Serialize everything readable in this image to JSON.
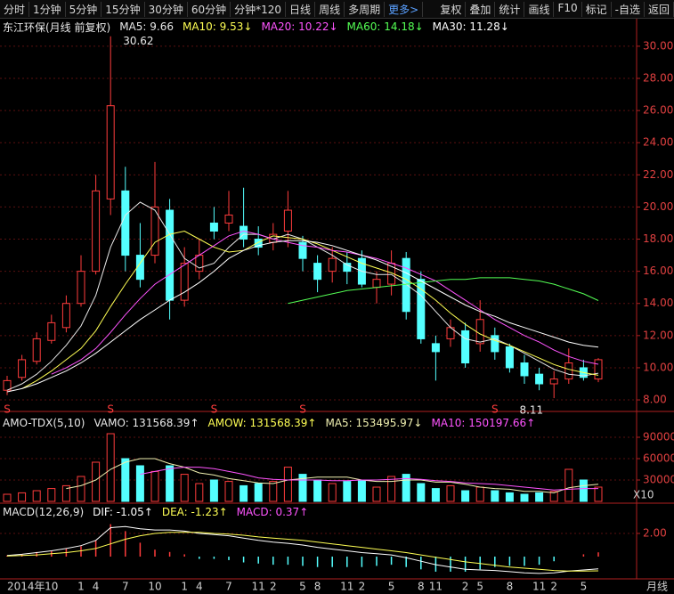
{
  "toolbar": {
    "left": [
      "分时",
      "1分钟",
      "5分钟",
      "15分钟",
      "30分钟",
      "60分钟",
      "分钟*120",
      "日线",
      "周线",
      "多周期",
      "更多>"
    ],
    "right": [
      "复权",
      "叠加",
      "统计",
      "画线",
      "F10",
      "标记",
      "-自选",
      "返回"
    ]
  },
  "period_label": "月线",
  "chart_data": [
    {
      "type": "candlestick",
      "title": "东江环保(月线 前复权)",
      "categories": [
        "2014年",
        null,
        null,
        "10",
        null,
        "1",
        "4",
        null,
        "7",
        null,
        "10",
        null,
        "1",
        "4",
        null,
        "7",
        null,
        "11",
        "2",
        null,
        "5",
        "8",
        null,
        "11",
        "2",
        null,
        "5",
        null,
        "8",
        "11",
        null,
        "2",
        "5",
        null,
        "8",
        null,
        "11",
        "2",
        null,
        "5",
        null
      ],
      "open": [
        8.6,
        9.4,
        10.4,
        11.7,
        12.5,
        14.0,
        16.0,
        20.5,
        21.0,
        17.0,
        17.0,
        19.8,
        14.2,
        16.0,
        19.0,
        19.0,
        18.8,
        18.0,
        17.8,
        18.5,
        17.8,
        16.5,
        16.0,
        16.5,
        16.8,
        15.0,
        15.2,
        16.8,
        15.5,
        11.5,
        11.8,
        12.3,
        11.5,
        12.0,
        11.3,
        10.3,
        9.6,
        9.0,
        9.3,
        10.0,
        9.3
      ],
      "high": [
        9.5,
        10.8,
        12.2,
        13.3,
        14.5,
        17.0,
        22.0,
        30.62,
        22.5,
        19.0,
        22.8,
        20.5,
        17.5,
        18.0,
        20.0,
        21.0,
        21.2,
        18.8,
        19.0,
        21.0,
        18.2,
        17.0,
        17.5,
        17.2,
        17.3,
        16.0,
        17.3,
        17.2,
        16.0,
        12.0,
        13.0,
        12.8,
        14.2,
        12.5,
        11.5,
        10.8,
        10.0,
        9.8,
        11.2,
        10.5,
        10.6
      ],
      "low": [
        8.3,
        9.2,
        10.2,
        11.5,
        12.2,
        13.8,
        15.8,
        19.5,
        16.0,
        15.0,
        16.5,
        13.0,
        13.8,
        15.5,
        18.0,
        18.5,
        17.5,
        17.0,
        17.3,
        17.5,
        16.0,
        14.7,
        15.3,
        15.2,
        15.0,
        14.0,
        14.5,
        13.0,
        11.5,
        9.2,
        11.3,
        10.0,
        11.0,
        10.5,
        9.7,
        9.0,
        8.6,
        8.11,
        9.0,
        9.2,
        9.1
      ],
      "close": [
        9.2,
        10.5,
        11.8,
        12.8,
        14.0,
        16.0,
        21.0,
        26.3,
        17.0,
        15.5,
        20.0,
        14.2,
        16.5,
        17.0,
        18.5,
        19.5,
        18.0,
        17.5,
        18.3,
        19.8,
        16.8,
        15.5,
        16.8,
        16.0,
        15.2,
        15.5,
        16.5,
        13.5,
        11.8,
        11.0,
        12.5,
        10.3,
        13.0,
        11.0,
        10.0,
        9.5,
        9.0,
        9.3,
        10.3,
        9.4,
        10.5
      ],
      "high_labels": [
        null,
        null,
        null,
        null,
        null,
        null,
        null,
        "30.62",
        null,
        null,
        null,
        null,
        null,
        null,
        null,
        null,
        null,
        null,
        null,
        null,
        null,
        null,
        null,
        null,
        null,
        null,
        null,
        null,
        null,
        null,
        null,
        null,
        null,
        null,
        null,
        null,
        null,
        null,
        null,
        null,
        null
      ],
      "low_labels": [
        null,
        null,
        null,
        null,
        null,
        null,
        null,
        null,
        null,
        null,
        null,
        null,
        null,
        null,
        null,
        null,
        null,
        null,
        null,
        null,
        null,
        null,
        null,
        null,
        null,
        null,
        null,
        null,
        null,
        null,
        null,
        null,
        null,
        null,
        null,
        null,
        null,
        "8.11",
        null,
        null,
        null
      ],
      "signals": [
        "S",
        null,
        null,
        null,
        null,
        null,
        null,
        "S",
        null,
        null,
        null,
        null,
        null,
        null,
        "S",
        null,
        null,
        null,
        null,
        null,
        "S",
        null,
        null,
        null,
        null,
        null,
        null,
        null,
        null,
        null,
        null,
        null,
        null,
        "S",
        null,
        null,
        null,
        null,
        null,
        null,
        null
      ],
      "up_color": "#ff3c3c",
      "down_color": "#54ffff",
      "series": [
        {
          "name": "MA5: 9.66",
          "color": "#e8e8e8",
          "values": [
            8.6,
            9.0,
            9.6,
            10.4,
            11.4,
            12.6,
            14.5,
            17.5,
            19.5,
            20.3,
            19.8,
            18.3,
            16.8,
            16.2,
            16.5,
            17.5,
            18.3,
            18.3,
            18.0,
            18.3,
            18.0,
            17.5,
            17.0,
            16.4,
            16.0,
            15.8,
            15.8,
            15.2,
            14.5,
            13.5,
            12.5,
            11.8,
            11.6,
            11.8,
            11.4,
            10.9,
            10.4,
            9.9,
            9.6,
            9.5,
            9.66
          ]
        },
        {
          "name": "MA10: 9.53↓",
          "color": "#ffff54",
          "values": [
            null,
            8.7,
            9.2,
            9.8,
            10.5,
            11.2,
            12.3,
            13.8,
            15.2,
            16.5,
            17.8,
            18.3,
            18.5,
            18.0,
            17.5,
            17.2,
            17.3,
            17.8,
            18.2,
            18.1,
            18.0,
            17.7,
            17.3,
            16.9,
            16.5,
            16.2,
            15.9,
            15.5,
            14.9,
            14.2,
            13.4,
            12.7,
            12.1,
            11.7,
            11.4,
            11.0,
            10.6,
            10.2,
            9.9,
            9.7,
            9.53
          ]
        },
        {
          "name": "MA20: 10.22↓",
          "color": "#ff54ff",
          "values": [
            null,
            null,
            null,
            9.6,
            10.0,
            10.5,
            11.2,
            12.2,
            13.3,
            14.3,
            15.2,
            15.8,
            16.4,
            17.0,
            17.6,
            18.2,
            18.5,
            18.3,
            18.0,
            17.8,
            17.6,
            17.5,
            17.3,
            17.2,
            17.0,
            16.8,
            16.5,
            16.2,
            15.8,
            15.4,
            14.8,
            14.2,
            13.6,
            13.0,
            12.5,
            12.0,
            11.6,
            11.1,
            10.7,
            10.4,
            10.22
          ]
        },
        {
          "name": "MA60: 14.18↓",
          "color": "#54ff54",
          "values": [
            null,
            null,
            null,
            null,
            null,
            null,
            null,
            null,
            null,
            null,
            null,
            null,
            null,
            null,
            null,
            null,
            null,
            null,
            null,
            14.0,
            14.2,
            14.4,
            14.6,
            14.8,
            14.9,
            15.0,
            15.1,
            15.2,
            15.3,
            15.4,
            15.5,
            15.5,
            15.6,
            15.6,
            15.6,
            15.5,
            15.4,
            15.2,
            14.9,
            14.6,
            14.18
          ]
        },
        {
          "name": "MA30: 11.28↓",
          "color": "#ffffff",
          "values": [
            8.5,
            8.7,
            9.0,
            9.4,
            9.8,
            10.3,
            10.9,
            11.6,
            12.3,
            13.0,
            13.6,
            14.2,
            14.7,
            15.3,
            16.0,
            16.8,
            17.3,
            17.6,
            17.8,
            17.9,
            17.9,
            17.8,
            17.6,
            17.3,
            17.0,
            16.7,
            16.3,
            15.9,
            15.4,
            14.9,
            14.4,
            13.9,
            13.5,
            13.2,
            12.8,
            12.5,
            12.2,
            11.9,
            11.6,
            11.4,
            11.28
          ]
        }
      ],
      "ylim": [
        7.67,
        30.66
      ],
      "yticks": [
        {
          "value": 8,
          "label": "8.00"
        },
        {
          "value": 10,
          "label": "10.00"
        },
        {
          "value": 12,
          "label": "12.00"
        },
        {
          "value": 14,
          "label": "14.00"
        },
        {
          "value": 16,
          "label": "16.00"
        },
        {
          "value": 18,
          "label": "18.00"
        },
        {
          "value": 20,
          "label": "20.00"
        },
        {
          "value": 22,
          "label": "22.00"
        },
        {
          "value": 24,
          "label": "24.00"
        },
        {
          "value": 26,
          "label": "26.00"
        },
        {
          "value": 28,
          "label": "28.00"
        },
        {
          "value": 30,
          "label": "30.00"
        }
      ],
      "grid": true
    },
    {
      "type": "volume",
      "title": "AMO-TDX(5,10)",
      "bar_name": "VAMO: 131568.39↑",
      "extra_labels": [
        "AMOW: 131568.39↑"
      ],
      "scale_label": "X10",
      "values": [
        10000,
        12000,
        15000,
        18000,
        22000,
        35000,
        55000,
        95000,
        60000,
        50000,
        42000,
        50000,
        38000,
        25000,
        30000,
        28000,
        22000,
        25000,
        28000,
        48000,
        38000,
        30000,
        25000,
        28000,
        30000,
        20000,
        35000,
        38000,
        25000,
        18000,
        22000,
        15000,
        20000,
        15000,
        12000,
        10000,
        12000,
        14000,
        45000,
        30000,
        20000
      ],
      "series": [
        {
          "name": "MA5: 153495.97↓",
          "color": "#f0f0b0",
          "values": [
            null,
            null,
            null,
            null,
            18000,
            22000,
            30000,
            45000,
            55000,
            60000,
            60000,
            53000,
            48000,
            40000,
            37000,
            32000,
            29000,
            26000,
            25000,
            30000,
            32000,
            34000,
            34000,
            34000,
            30000,
            28000,
            28000,
            30000,
            30000,
            27000,
            27000,
            24000,
            20000,
            18000,
            17000,
            14000,
            14000,
            12000,
            19000,
            22000,
            24000
          ]
        },
        {
          "name": "MA10: 150197.66↑",
          "color": "#ff54ff",
          "values": [
            null,
            null,
            null,
            null,
            null,
            null,
            null,
            null,
            null,
            38000,
            42000,
            46000,
            48000,
            48000,
            46000,
            42000,
            38000,
            33000,
            31000,
            30000,
            30000,
            30000,
            29000,
            29000,
            30000,
            30000,
            31000,
            32000,
            31000,
            29000,
            28000,
            26000,
            25000,
            24000,
            22000,
            20000,
            18000,
            16000,
            17000,
            18000,
            18000
          ]
        }
      ],
      "ylim": [
        0,
        100000
      ],
      "yticks": [
        30000,
        60000,
        90000
      ],
      "grid": true
    },
    {
      "type": "macd",
      "title": "MACD(12,26,9)",
      "bar_name": "MACD: 0.37↑",
      "bar_color": "#ff54ff",
      "values": [
        0.1,
        0.2,
        0.4,
        0.5,
        0.7,
        0.9,
        1.4,
        2.8,
        2.2,
        1.2,
        0.6,
        0.4,
        0.2,
        -0.2,
        -0.2,
        -0.3,
        -0.5,
        -0.6,
        -0.7,
        -0.7,
        -0.8,
        -0.9,
        -0.9,
        -0.9,
        -0.9,
        -0.8,
        -0.7,
        -0.9,
        -1.1,
        -1.3,
        -1.3,
        -1.3,
        -1.1,
        -0.9,
        -0.8,
        -0.8,
        -0.7,
        -0.4,
        0,
        0.2,
        0.37
      ],
      "series": [
        {
          "name": "DIF: -1.05↑",
          "color": "#ffffff",
          "values": [
            0.1,
            0.2,
            0.35,
            0.5,
            0.7,
            0.95,
            1.4,
            2.5,
            2.6,
            2.4,
            2.3,
            2.3,
            2.2,
            2.0,
            1.9,
            1.8,
            1.6,
            1.4,
            1.25,
            1.15,
            1.0,
            0.8,
            0.65,
            0.5,
            0.35,
            0.25,
            0.15,
            -0.1,
            -0.4,
            -0.7,
            -0.9,
            -1.1,
            -1.15,
            -1.2,
            -1.3,
            -1.4,
            -1.45,
            -1.4,
            -1.25,
            -1.15,
            -1.05
          ]
        },
        {
          "name": "DEA: -1.23↑",
          "color": "#ffff54",
          "values": [
            0.05,
            0.1,
            0.15,
            0.25,
            0.35,
            0.5,
            0.7,
            1.1,
            1.5,
            1.8,
            2.0,
            2.1,
            2.1,
            2.1,
            2.0,
            1.95,
            1.85,
            1.7,
            1.6,
            1.5,
            1.4,
            1.25,
            1.1,
            0.95,
            0.8,
            0.65,
            0.5,
            0.35,
            0.15,
            -0.05,
            -0.25,
            -0.45,
            -0.6,
            -0.75,
            -0.9,
            -1.0,
            -1.1,
            -1.2,
            -1.25,
            -1.25,
            -1.23
          ]
        }
      ],
      "ylim": [
        -1.92,
        3.23
      ],
      "yticks": [
        {
          "value": 2,
          "label": "2.00"
        }
      ],
      "grid": true
    }
  ]
}
